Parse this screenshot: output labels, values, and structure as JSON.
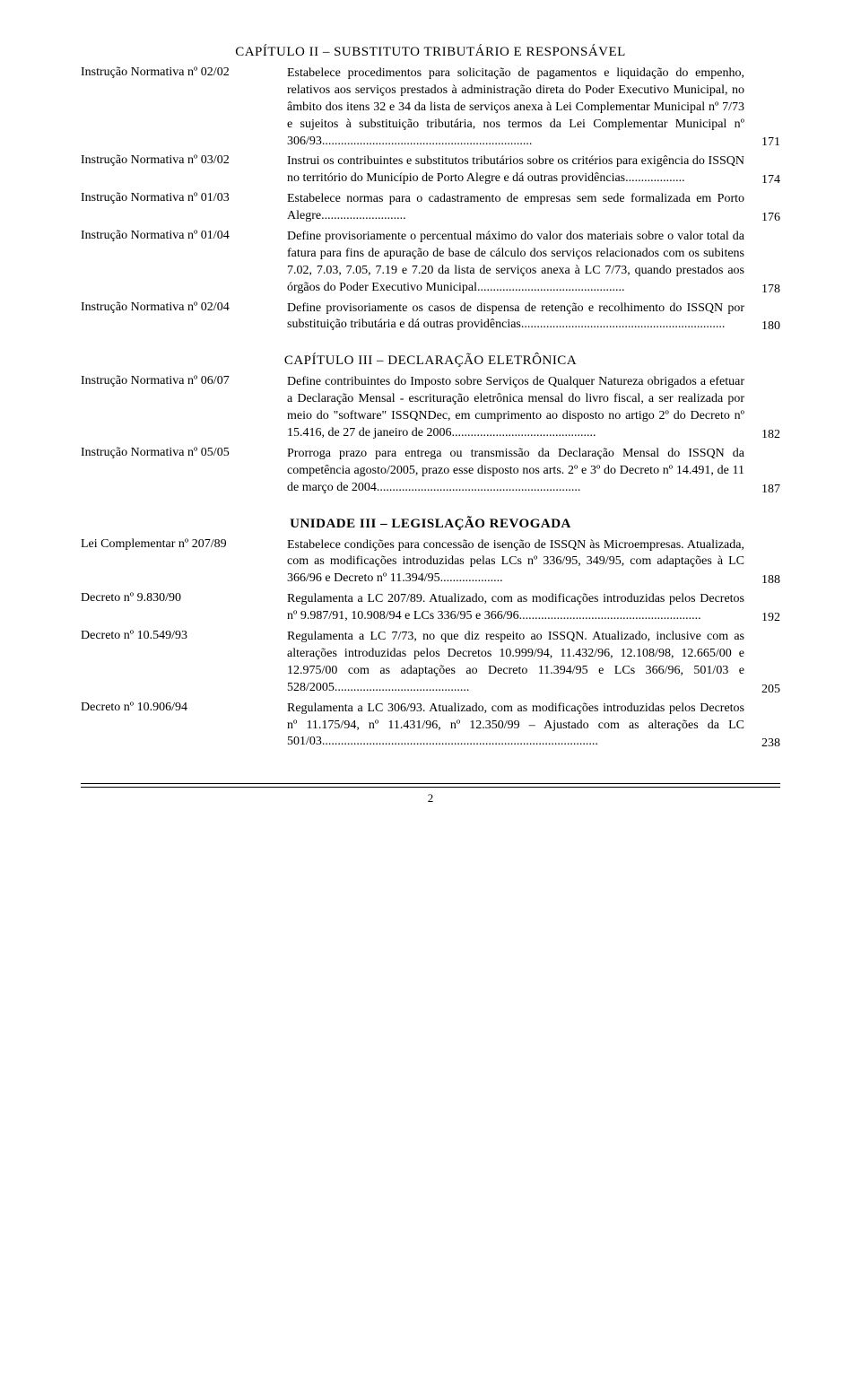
{
  "chapter2": {
    "title": "CAPÍTULO II – SUBSTITUTO TRIBUTÁRIO E RESPONSÁVEL",
    "entries": [
      {
        "label": "Instrução Normativa nº 02/02",
        "desc": "Estabelece procedimentos para solicitação de pagamentos e liquidação do empenho, relativos aos serviços prestados à administração direta do Poder Executivo Municipal, no âmbito dos itens 32 e 34 da lista de serviços anexa à Lei Complementar Municipal nº 7/73 e sujeitos à substituição tributária, nos termos da Lei Complementar Municipal nº 306/93...................................................................",
        "page": "171"
      },
      {
        "label": "Instrução Normativa nº 03/02",
        "desc": "Instrui os contribuintes e substitutos tributários sobre os critérios para exigência do ISSQN no território do Município de Porto Alegre e dá outras providências...................",
        "page": "174"
      },
      {
        "label": "Instrução Normativa nº 01/03",
        "desc": "Estabelece normas para o cadastramento de empresas sem  sede  formalizada em Porto Alegre...........................",
        "page": "176"
      },
      {
        "label": "Instrução Normativa nº 01/04",
        "desc": "Define provisoriamente o percentual máximo do valor dos materiais sobre o valor total da fatura para fins de apuração de base de cálculo dos serviços relacionados com os subitens 7.02, 7.03, 7.05, 7.19 e 7.20 da lista de serviços anexa à LC 7/73, quando prestados aos órgãos do Poder Executivo Municipal...............................................",
        "page": "178"
      },
      {
        "label": "Instrução Normativa nº 02/04",
        "desc": "Define provisoriamente os casos de dispensa de retenção e recolhimento do ISSQN por substituição tributária e dá outras providências.................................................................",
        "page": "180"
      }
    ]
  },
  "chapter3": {
    "title": "CAPÍTULO III – DECLARAÇÃO ELETRÔNICA",
    "entries": [
      {
        "label": "Instrução Normativa nº 06/07",
        "desc": "Define contribuintes do Imposto sobre Serviços de Qualquer Natureza obrigados a efetuar a Declaração Mensal - escrituração eletrônica mensal do livro fiscal, a ser realizada por meio do \"software\" ISSQNDec, em cumprimento ao disposto no artigo 2º do Decreto nº 15.416, de 27 de janeiro de 2006..............................................",
        "page": "182"
      },
      {
        "label": "Instrução Normativa nº 05/05",
        "desc": "Prorroga prazo para entrega ou transmissão da Declaração Mensal do ISSQN da competência agosto/2005, prazo esse disposto nos arts. 2º e 3º do Decreto nº 14.491, de 11 de março de 2004.................................................................",
        "page": "187"
      }
    ]
  },
  "unit3": {
    "title": "UNIDADE III – LEGISLAÇÃO REVOGADA",
    "entries": [
      {
        "label": "Lei Complementar nº 207/89",
        "desc": "Estabelece condições para concessão de isenção de ISSQN às Microempresas. Atualizada, com as modificações introduzidas pelas LCs nº 336/95, 349/95, com adaptações à LC 366/96 e Decreto nº 11.394/95....................",
        "page": "188"
      },
      {
        "label": "Decreto nº 9.830/90",
        "desc": "Regulamenta a LC 207/89. Atualizado, com as modificações introduzidas pelos Decretos nº 9.987/91, 10.908/94 e LCs 336/95 e 366/96..........................................................",
        "page": "192"
      },
      {
        "label": "Decreto nº 10.549/93",
        "desc": "Regulamenta a LC 7/73, no que diz respeito ao ISSQN. Atualizado, inclusive com as alterações introduzidas pelos Decretos 10.999/94, 11.432/96, 12.108/98, 12.665/00 e 12.975/00 com as adaptações ao Decreto 11.394/95 e LCs 366/96, 501/03 e 528/2005...........................................",
        "page": "205"
      },
      {
        "label": "Decreto nº 10.906/94",
        "desc": "Regulamenta a LC 306/93. Atualizado, com as modificações introduzidas pelos Decretos nº 11.175/94, nº 11.431/96, nº 12.350/99 – Ajustado com as alterações da LC 501/03........................................................................................",
        "page": "238"
      }
    ]
  },
  "footer": {
    "pageNum": "2"
  }
}
